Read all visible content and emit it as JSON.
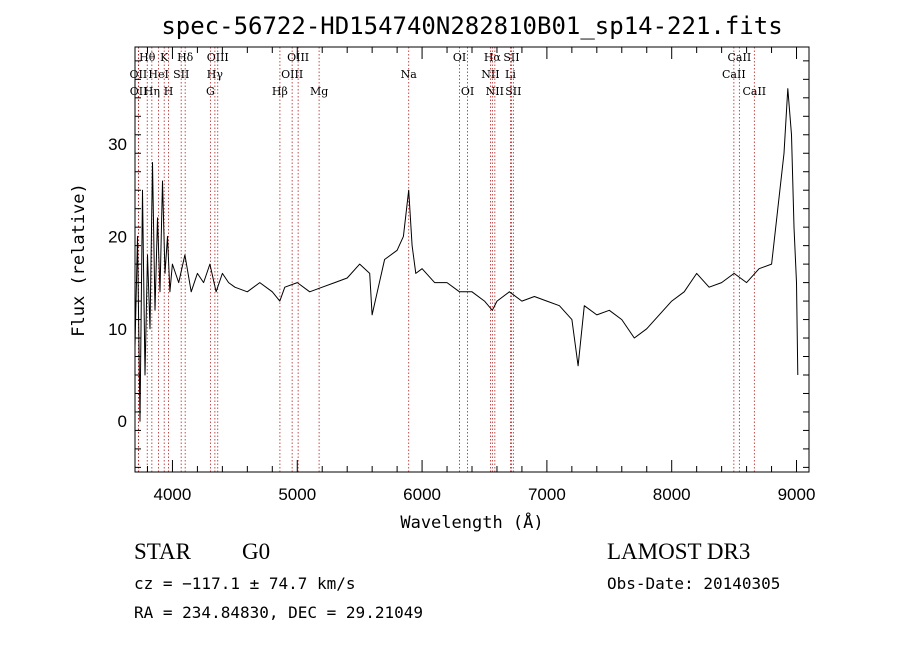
{
  "chart_data": {
    "type": "line",
    "title": "spec-56722-HD154740N282810B01_sp14-221.fits",
    "xlabel": "Wavelength (Å)",
    "ylabel": "Flux (relative)",
    "xlim": [
      3700,
      9100
    ],
    "ylim": [
      -5.5,
      40.5
    ],
    "xticks": [
      4000,
      5000,
      6000,
      7000,
      8000,
      9000
    ],
    "yticks": [
      0,
      10,
      20,
      30
    ],
    "grid": false,
    "series": [
      {
        "x": [
          3700,
          3720,
          3740,
          3760,
          3780,
          3800,
          3820,
          3840,
          3860,
          3880,
          3900,
          3920,
          3940,
          3960,
          3980,
          4000,
          4050,
          4100,
          4150,
          4200,
          4250,
          4300,
          4350,
          4400,
          4450,
          4500,
          4600,
          4700,
          4800,
          4860,
          4900,
          5000,
          5100,
          5200,
          5300,
          5400,
          5500,
          5580,
          5600,
          5700,
          5800,
          5850,
          5893,
          5920,
          5950,
          6000,
          6100,
          6200,
          6300,
          6400,
          6500,
          6563,
          6600,
          6700,
          6800,
          6900,
          7000,
          7100,
          7200,
          7250,
          7300,
          7400,
          7500,
          7600,
          7700,
          7800,
          7900,
          8000,
          8100,
          8150,
          8200,
          8300,
          8400,
          8500,
          8600,
          8700,
          8800,
          8850,
          8900,
          8930,
          8960,
          8980,
          9000,
          9010
        ],
        "y": [
          8,
          20,
          0,
          25,
          5,
          18,
          10,
          28,
          12,
          22,
          14,
          26,
          16,
          20,
          14,
          17,
          15,
          18,
          14,
          16,
          15,
          17,
          14,
          16,
          15,
          14.5,
          14,
          15,
          14,
          13,
          14.5,
          15,
          14,
          14.5,
          15,
          15.5,
          17,
          16,
          11.5,
          17.5,
          18.5,
          20,
          25,
          19,
          16,
          16.5,
          15,
          15,
          14,
          14,
          13,
          12,
          13,
          14,
          13,
          13.5,
          13,
          12.5,
          11,
          6,
          12.5,
          11.5,
          12,
          11,
          9,
          10,
          11.5,
          13,
          14,
          15,
          16,
          14.5,
          15,
          16,
          15,
          16.5,
          17,
          23,
          29,
          36,
          31,
          21,
          15,
          5
        ]
      }
    ]
  },
  "spectral_lines": [
    {
      "label": "Hθ",
      "x": 3798,
      "row": 1
    },
    {
      "label": "K",
      "x": 3934,
      "row": 1
    },
    {
      "label": "Hδ",
      "x": 4102,
      "row": 1
    },
    {
      "label": "OII",
      "x": 3727,
      "row": 2
    },
    {
      "label": "HeI",
      "x": 3889,
      "row": 2
    },
    {
      "label": "SII",
      "x": 4070,
      "row": 2
    },
    {
      "label": "OII",
      "x": 3729,
      "row": 3
    },
    {
      "label": "Hη",
      "x": 3835,
      "row": 3
    },
    {
      "label": "H",
      "x": 3969,
      "row": 3
    },
    {
      "label": "OIII",
      "x": 4363,
      "row": 1
    },
    {
      "label": "Hγ",
      "x": 4340,
      "row": 2
    },
    {
      "label": "G",
      "x": 4304,
      "row": 3
    },
    {
      "label": "OIII",
      "x": 5007,
      "row": 1
    },
    {
      "label": "OIII",
      "x": 4959,
      "row": 2
    },
    {
      "label": "Hβ",
      "x": 4861,
      "row": 3
    },
    {
      "label": "Mg",
      "x": 5175,
      "row": 3
    },
    {
      "label": "Na",
      "x": 5893,
      "row": 2
    },
    {
      "label": "OI",
      "x": 6300,
      "row": 1
    },
    {
      "label": "OI",
      "x": 6364,
      "row": 3
    },
    {
      "label": "Hα",
      "x": 6563,
      "row": 1
    },
    {
      "label": "SII",
      "x": 6716,
      "row": 1
    },
    {
      "label": "NII",
      "x": 6548,
      "row": 2
    },
    {
      "label": "Li",
      "x": 6708,
      "row": 2
    },
    {
      "label": "NII",
      "x": 6583,
      "row": 3
    },
    {
      "label": "SII",
      "x": 6731,
      "row": 3
    },
    {
      "label": "CaII",
      "x": 8542,
      "row": 1
    },
    {
      "label": "CaII",
      "x": 8498,
      "row": 2
    },
    {
      "label": "CaII",
      "x": 8662,
      "row": 3
    }
  ],
  "info": {
    "class_label": "STAR",
    "subclass": "G0",
    "survey": "LAMOST DR3",
    "velocity": "cz = −117.1 ± 74.7 km/s",
    "obs_date": "Obs-Date: 20140305",
    "coords": "RA = 234.84830, DEC =  29.21049"
  },
  "colors": {
    "spectrum": "#000000",
    "line_marker": "#b22222"
  }
}
